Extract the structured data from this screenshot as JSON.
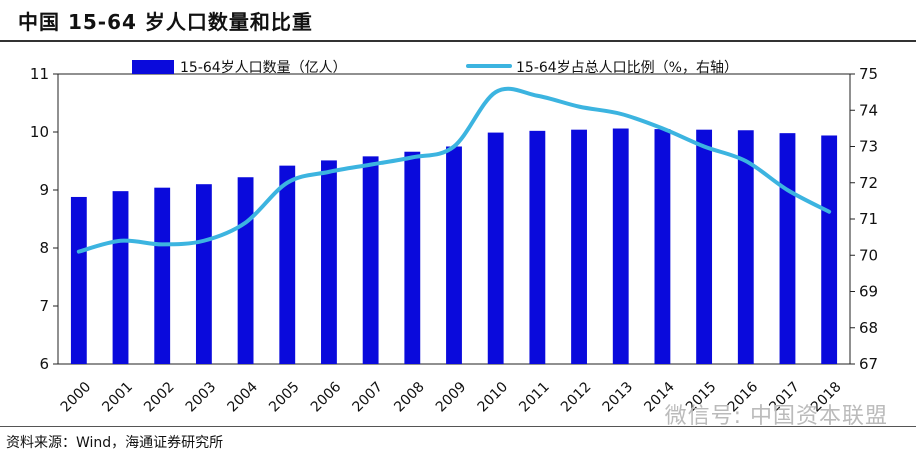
{
  "title": "中国 15-64 岁人口数量和比重",
  "source": "资料来源：Wind，海通证券研究所",
  "watermark": "微信号: 中国资本联盟",
  "chart_data": {
    "type": "bar",
    "categories": [
      "2000",
      "2001",
      "2002",
      "2003",
      "2004",
      "2005",
      "2006",
      "2007",
      "2008",
      "2009",
      "2010",
      "2011",
      "2012",
      "2013",
      "2014",
      "2015",
      "2016",
      "2017",
      "2018"
    ],
    "series": [
      {
        "name": "15-64岁人口数量（亿人）",
        "type": "bar",
        "axis": "left",
        "color": "#0a0adc",
        "values": [
          8.88,
          8.98,
          9.04,
          9.1,
          9.22,
          9.42,
          9.51,
          9.58,
          9.66,
          9.75,
          9.99,
          10.02,
          10.04,
          10.06,
          10.05,
          10.04,
          10.03,
          9.98,
          9.94
        ]
      },
      {
        "name": "15-64岁占总人口比例（%，右轴）",
        "type": "line",
        "axis": "right",
        "color": "#3cb4e0",
        "values": [
          70.1,
          70.4,
          70.3,
          70.4,
          70.9,
          72.0,
          72.3,
          72.5,
          72.7,
          73.0,
          74.5,
          74.4,
          74.1,
          73.9,
          73.5,
          73.0,
          72.6,
          71.8,
          71.2
        ]
      }
    ],
    "y_left": {
      "min": 6,
      "max": 11,
      "ticks": [
        6,
        7,
        8,
        9,
        10,
        11
      ]
    },
    "y_right": {
      "min": 67,
      "max": 75,
      "ticks": [
        67,
        68,
        69,
        70,
        71,
        72,
        73,
        74,
        75
      ]
    },
    "legend_position": "top",
    "grid": false
  }
}
